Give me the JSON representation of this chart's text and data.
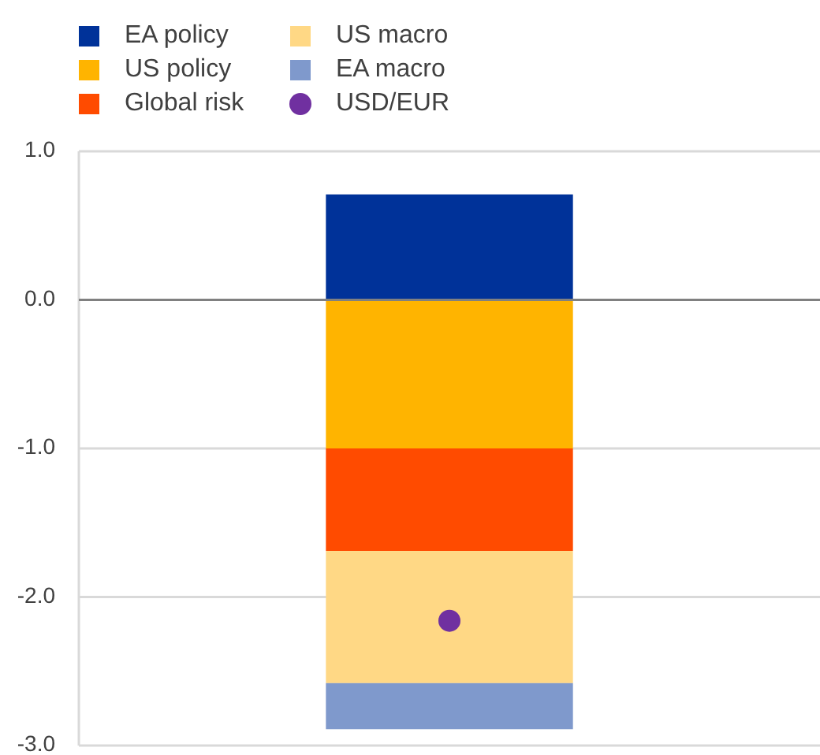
{
  "chart_data": {
    "type": "bar",
    "stacked": true,
    "categories": [
      null
    ],
    "series": [
      {
        "name": "EA policy",
        "color": "#003299",
        "values": [
          0.71
        ]
      },
      {
        "name": "US policy",
        "color": "#ffb400",
        "values": [
          -1.0
        ]
      },
      {
        "name": "Global risk",
        "color": "#ff4b00",
        "values": [
          -0.69
        ]
      },
      {
        "name": "US macro",
        "color": "#ffd885",
        "values": [
          -0.89
        ]
      },
      {
        "name": "EA macro",
        "color": "#7f99cc",
        "values": [
          -0.31
        ]
      },
      {
        "name": "USD/EUR",
        "type": "scatter",
        "color": "#7030a0",
        "values": [
          -2.16
        ]
      }
    ],
    "ylim": [
      -3,
      1
    ],
    "yticks": [
      {
        "value": 1,
        "label": "1.0"
      },
      {
        "value": 0,
        "label": "0.0"
      },
      {
        "value": -1,
        "label": "-1.0"
      },
      {
        "value": -2,
        "label": "-2.0"
      },
      {
        "value": -3,
        "label": "-3.0"
      }
    ],
    "grid": "y",
    "legend": "top left",
    "marker": "circle",
    "tick_labels": "y"
  }
}
